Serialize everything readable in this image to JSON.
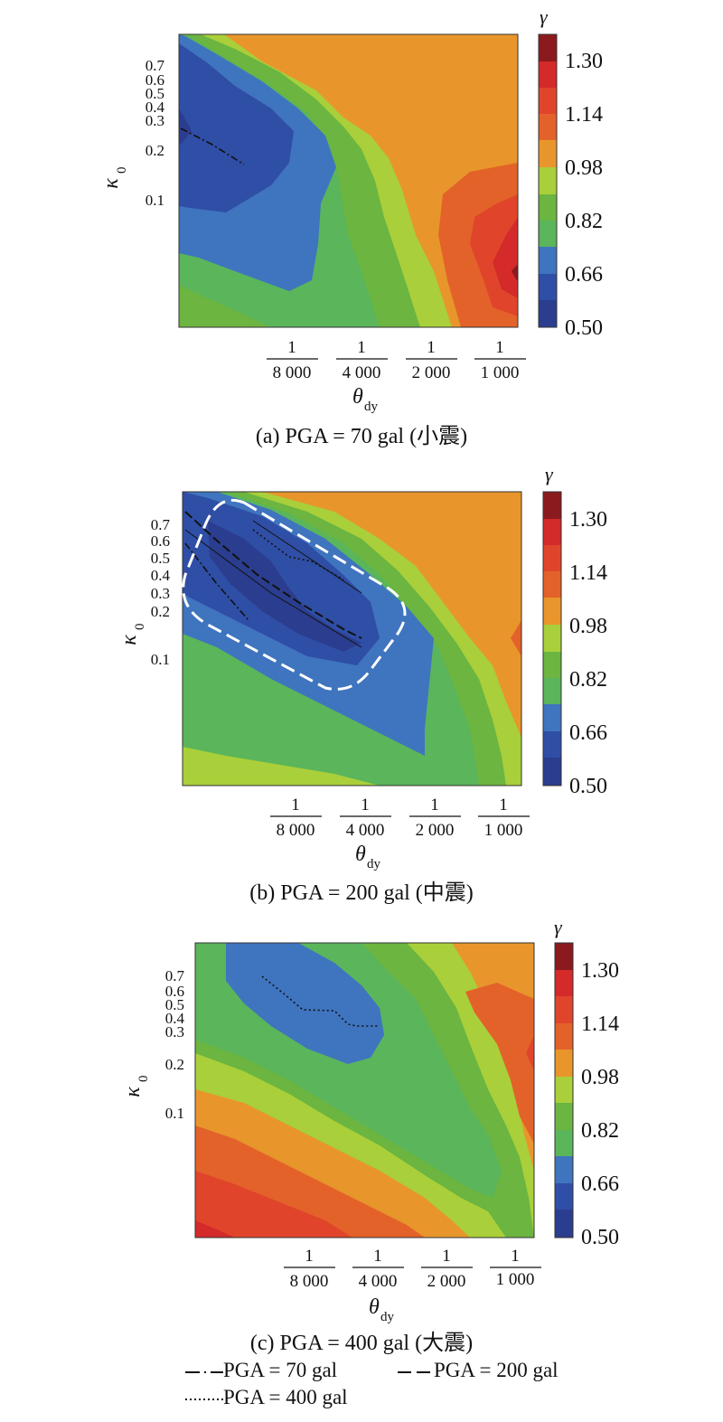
{
  "chart_data": [
    {
      "type": "heatmap",
      "panel": "a",
      "caption": "(a) PGA = 70 gal (小震)",
      "ylabel": "κ",
      "ylabel_sub": "0",
      "xlabel": "θ",
      "xlabel_sub": "dy",
      "yticks": [
        "0.7",
        "0.6",
        "0.5",
        "0.4",
        "0.3",
        "0.2",
        "0.1"
      ],
      "xticks": [
        {
          "num": "1",
          "den": "8 000"
        },
        {
          "num": "1",
          "den": "4 000"
        },
        {
          "num": "1",
          "den": "2 000"
        },
        {
          "num": "1",
          "den": "1 000"
        }
      ],
      "colorbar": {
        "label": "γ",
        "ticks": [
          "1.30",
          "1.14",
          "0.98",
          "0.82",
          "0.66",
          "0.50"
        ]
      },
      "contour_lines": [
        {
          "series": "PGA = 70 gal",
          "style": "dash-dot"
        }
      ]
    },
    {
      "type": "heatmap",
      "panel": "b",
      "caption": "(b) PGA = 200 gal (中震)",
      "ylabel": "κ",
      "ylabel_sub": "0",
      "xlabel": "θ",
      "xlabel_sub": "dy",
      "yticks": [
        "0.7",
        "0.6",
        "0.5",
        "0.4",
        "0.3",
        "0.2",
        "0.1"
      ],
      "xticks": [
        {
          "num": "1",
          "den": "8 000"
        },
        {
          "num": "1",
          "den": "4 000"
        },
        {
          "num": "1",
          "den": "2 000"
        },
        {
          "num": "1",
          "den": "1 000"
        }
      ],
      "colorbar": {
        "label": "γ",
        "ticks": [
          "1.30",
          "1.14",
          "0.98",
          "0.82",
          "0.66",
          "0.50"
        ]
      },
      "contour_lines": [
        {
          "series": "PGA = 70 gal",
          "style": "dash-dot"
        },
        {
          "series": "PGA = 200 gal",
          "style": "dashed"
        },
        {
          "series": "PGA = 400 gal",
          "style": "dotted"
        }
      ]
    },
    {
      "type": "heatmap",
      "panel": "c",
      "caption": "(c) PGA = 400 gal (大震)",
      "ylabel": "κ",
      "ylabel_sub": "0",
      "xlabel": "θ",
      "xlabel_sub": "dy",
      "yticks": [
        "0.7",
        "0.6",
        "0.5",
        "0.4",
        "0.3",
        "0.2",
        "0.1"
      ],
      "xticks": [
        {
          "num": "1",
          "den": "8 000"
        },
        {
          "num": "1",
          "den": "4 000"
        },
        {
          "num": "1",
          "den": "2 000"
        },
        {
          "num": "1",
          "den": "1 000"
        }
      ],
      "colorbar": {
        "label": "γ",
        "ticks": [
          "1.30",
          "1.14",
          "0.98",
          "0.82",
          "0.66",
          "0.50"
        ]
      },
      "contour_lines": [
        {
          "series": "PGA = 400 gal",
          "style": "dotted"
        }
      ]
    }
  ],
  "legend": {
    "items": [
      {
        "label": "PGA = 70 gal",
        "style": "dash-dot"
      },
      {
        "label": "PGA = 200 gal",
        "style": "dashed"
      },
      {
        "label": "PGA = 400 gal",
        "style": "dotted"
      }
    ]
  },
  "colors": {
    "c050": "#2b3d8f",
    "c058": "#2f4ea5",
    "c066": "#3f74bf",
    "c074": "#5ab55b",
    "c082": "#6bb540",
    "c090": "#a9cf3a",
    "c098": "#e8962b",
    "c106": "#e3622a",
    "c114": "#e0452b",
    "c122": "#d42a2a",
    "c130": "#8b1a1f"
  }
}
